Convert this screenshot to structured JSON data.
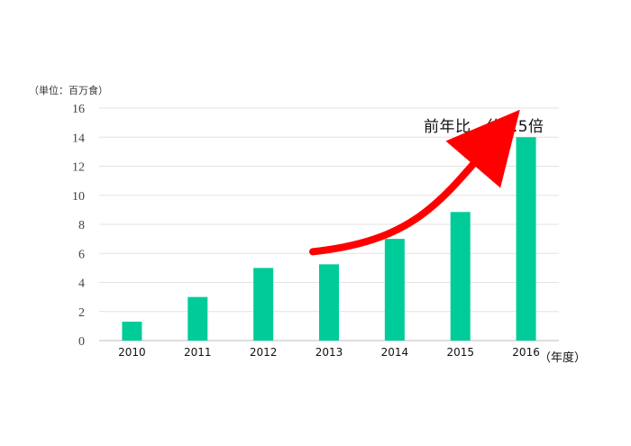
{
  "chart_data": {
    "type": "bar",
    "categories": [
      "2010",
      "2011",
      "2012",
      "2013",
      "2014",
      "2015",
      "2016"
    ],
    "values": [
      1.3,
      3.0,
      5.0,
      5.25,
      7.0,
      8.85,
      14.0
    ],
    "ylabel": "（単位：百万食）",
    "xlabel": "（年度）",
    "ylim": [
      0,
      16
    ],
    "yticks": [
      0,
      2,
      4,
      6,
      8,
      10,
      12,
      14,
      16
    ],
    "grid": true,
    "bar_color": "#00CC99",
    "annotation": {
      "text": "前年比　約1.5倍",
      "arrow_color": "#FF0000",
      "arrow_from_category": "2013",
      "arrow_to_category": "2016"
    }
  }
}
